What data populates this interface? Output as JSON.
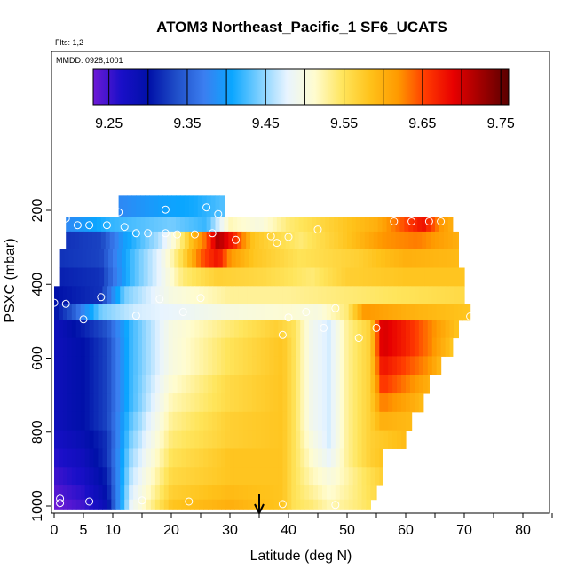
{
  "chart_data": {
    "type": "heatmap",
    "title": "ATOM3 Northeast_Pacific_1 SF6_UCATS",
    "flights_label": "Flts: 1,2",
    "dates_label": "MMDD: 0928,1001",
    "xlabel": "Latitude (deg N)",
    "ylabel": "PSXC (mbar)",
    "xlim": [
      0,
      85
    ],
    "ylim": [
      1000,
      0
    ],
    "x_ticks": [
      0,
      5,
      10,
      20,
      30,
      40,
      50,
      60,
      70,
      80
    ],
    "x_ticks_minor": [
      15,
      25,
      35,
      45,
      55,
      65,
      75,
      85
    ],
    "y_ticks": [
      200,
      400,
      600,
      800,
      1000
    ],
    "colorbar": {
      "min": 9.23,
      "max": 9.76,
      "tick_values": [
        9.25,
        9.35,
        9.45,
        9.55,
        9.65,
        9.75
      ],
      "tick_labels": [
        "9.25",
        "9.35",
        "9.45",
        "9.55",
        "9.65",
        "9.75"
      ],
      "colors": [
        "#6e1ad6",
        "#1a0fc8",
        "#0010a8",
        "#1f4ec8",
        "#3b7ef0",
        "#0aa6ff",
        "#7ccfff",
        "#e8f4ff",
        "#fffccf",
        "#ffe55c",
        "#ffc21a",
        "#ff9a00",
        "#ff3a00",
        "#e80000",
        "#a00000",
        "#5a0000"
      ]
    },
    "arrow_latitude": 35,
    "bands": [
      {
        "p": 200,
        "x0": 11,
        "x1": 29,
        "anchors": [
          [
            11,
            9.38
          ],
          [
            18,
            9.4
          ],
          [
            24,
            9.41
          ],
          [
            29,
            9.43
          ]
        ]
      },
      {
        "p": 235,
        "x0": 2,
        "x1": 68,
        "anchors": [
          [
            2,
            9.38
          ],
          [
            10,
            9.42
          ],
          [
            20,
            9.44
          ],
          [
            26,
            9.42
          ],
          [
            30,
            9.52
          ],
          [
            35,
            9.5
          ],
          [
            40,
            9.54
          ],
          [
            50,
            9.58
          ],
          [
            55,
            9.6
          ],
          [
            60,
            9.65
          ],
          [
            63,
            9.68
          ],
          [
            66,
            9.62
          ],
          [
            68,
            9.6
          ]
        ]
      },
      {
        "p": 280,
        "x0": 2,
        "x1": 69,
        "anchors": [
          [
            2,
            9.32
          ],
          [
            8,
            9.33
          ],
          [
            12,
            9.4
          ],
          [
            18,
            9.46
          ],
          [
            21,
            9.52
          ],
          [
            24,
            9.6
          ],
          [
            26,
            9.64
          ],
          [
            28,
            9.72
          ],
          [
            31,
            9.66
          ],
          [
            34,
            9.58
          ],
          [
            38,
            9.56
          ],
          [
            42,
            9.54
          ],
          [
            50,
            9.58
          ],
          [
            56,
            9.62
          ],
          [
            62,
            9.63
          ],
          [
            69,
            9.6
          ]
        ]
      },
      {
        "p": 330,
        "x0": 1,
        "x1": 69,
        "anchors": [
          [
            1,
            9.32
          ],
          [
            8,
            9.33
          ],
          [
            13,
            9.42
          ],
          [
            18,
            9.48
          ],
          [
            22,
            9.56
          ],
          [
            25,
            9.64
          ],
          [
            28,
            9.68
          ],
          [
            30,
            9.62
          ],
          [
            34,
            9.58
          ],
          [
            42,
            9.55
          ],
          [
            52,
            9.57
          ],
          [
            60,
            9.6
          ],
          [
            69,
            9.59
          ]
        ]
      },
      {
        "p": 380,
        "x0": 1,
        "x1": 70,
        "anchors": [
          [
            1,
            9.31
          ],
          [
            8,
            9.32
          ],
          [
            13,
            9.42
          ],
          [
            18,
            9.48
          ],
          [
            22,
            9.54
          ],
          [
            28,
            9.57
          ],
          [
            36,
            9.56
          ],
          [
            44,
            9.54
          ],
          [
            50,
            9.57
          ],
          [
            60,
            9.58
          ],
          [
            70,
            9.58
          ]
        ]
      },
      {
        "p": 430,
        "x0": 0,
        "x1": 70,
        "anchors": [
          [
            0,
            9.3
          ],
          [
            8,
            9.32
          ],
          [
            12,
            9.44
          ],
          [
            20,
            9.5
          ],
          [
            30,
            9.53
          ],
          [
            40,
            9.53
          ],
          [
            50,
            9.54
          ],
          [
            60,
            9.55
          ],
          [
            70,
            9.56
          ]
        ]
      },
      {
        "p": 475,
        "x0": 0,
        "x1": 71,
        "anchors": [
          [
            0,
            9.3
          ],
          [
            3,
            9.34
          ],
          [
            8,
            9.44
          ],
          [
            14,
            9.47
          ],
          [
            20,
            9.48
          ],
          [
            30,
            9.5
          ],
          [
            40,
            9.51
          ],
          [
            45,
            9.5
          ],
          [
            50,
            9.54
          ],
          [
            53,
            9.62
          ],
          [
            60,
            9.6
          ],
          [
            71,
            9.58
          ]
        ]
      },
      {
        "p": 520,
        "x0": 0,
        "x1": 69,
        "anchors": [
          [
            0,
            9.28
          ],
          [
            5,
            9.31
          ],
          [
            9,
            9.34
          ],
          [
            13,
            9.42
          ],
          [
            20,
            9.5
          ],
          [
            30,
            9.54
          ],
          [
            38,
            9.57
          ],
          [
            41,
            9.55
          ],
          [
            44,
            9.49
          ],
          [
            47,
            9.47
          ],
          [
            50,
            9.53
          ],
          [
            54,
            9.57
          ],
          [
            56,
            9.7
          ],
          [
            60,
            9.67
          ],
          [
            64,
            9.63
          ],
          [
            69,
            9.58
          ]
        ]
      },
      {
        "p": 570,
        "x0": 0,
        "x1": 68,
        "anchors": [
          [
            0,
            9.28
          ],
          [
            5,
            9.3
          ],
          [
            9,
            9.33
          ],
          [
            13,
            9.42
          ],
          [
            20,
            9.5
          ],
          [
            30,
            9.55
          ],
          [
            39,
            9.58
          ],
          [
            41,
            9.55
          ],
          [
            44,
            9.49
          ],
          [
            47,
            9.47
          ],
          [
            50,
            9.53
          ],
          [
            54,
            9.57
          ],
          [
            56,
            9.7
          ],
          [
            60,
            9.67
          ],
          [
            64,
            9.63
          ],
          [
            68,
            9.58
          ]
        ]
      },
      {
        "p": 620,
        "x0": 0,
        "x1": 66,
        "anchors": [
          [
            0,
            9.28
          ],
          [
            5,
            9.3
          ],
          [
            9,
            9.33
          ],
          [
            13,
            9.42
          ],
          [
            20,
            9.5
          ],
          [
            30,
            9.55
          ],
          [
            39,
            9.58
          ],
          [
            41,
            9.55
          ],
          [
            44,
            9.49
          ],
          [
            47,
            9.47
          ],
          [
            50,
            9.53
          ],
          [
            54,
            9.57
          ],
          [
            56,
            9.68
          ],
          [
            60,
            9.65
          ],
          [
            64,
            9.62
          ],
          [
            66,
            9.59
          ]
        ]
      },
      {
        "p": 670,
        "x0": 0,
        "x1": 64,
        "anchors": [
          [
            0,
            9.28
          ],
          [
            5,
            9.3
          ],
          [
            9,
            9.33
          ],
          [
            13,
            9.42
          ],
          [
            20,
            9.51
          ],
          [
            30,
            9.56
          ],
          [
            39,
            9.58
          ],
          [
            41,
            9.55
          ],
          [
            44,
            9.49
          ],
          [
            47,
            9.47
          ],
          [
            50,
            9.53
          ],
          [
            54,
            9.57
          ],
          [
            56,
            9.66
          ],
          [
            60,
            9.63
          ],
          [
            64,
            9.6
          ]
        ]
      },
      {
        "p": 720,
        "x0": 0,
        "x1": 63,
        "anchors": [
          [
            0,
            9.28
          ],
          [
            5,
            9.3
          ],
          [
            9,
            9.33
          ],
          [
            13,
            9.42
          ],
          [
            20,
            9.52
          ],
          [
            30,
            9.56
          ],
          [
            39,
            9.58
          ],
          [
            41,
            9.55
          ],
          [
            44,
            9.49
          ],
          [
            47,
            9.47
          ],
          [
            50,
            9.53
          ],
          [
            54,
            9.57
          ],
          [
            56,
            9.63
          ],
          [
            60,
            9.61
          ],
          [
            63,
            9.59
          ]
        ]
      },
      {
        "p": 770,
        "x0": 0,
        "x1": 61,
        "anchors": [
          [
            0,
            9.28
          ],
          [
            5,
            9.3
          ],
          [
            9,
            9.33
          ],
          [
            13,
            9.43
          ],
          [
            20,
            9.53
          ],
          [
            30,
            9.57
          ],
          [
            39,
            9.58
          ],
          [
            41,
            9.55
          ],
          [
            44,
            9.49
          ],
          [
            47,
            9.47
          ],
          [
            50,
            9.53
          ],
          [
            54,
            9.57
          ],
          [
            56,
            9.6
          ],
          [
            61,
            9.59
          ]
        ]
      },
      {
        "p": 820,
        "x0": 0,
        "x1": 60,
        "anchors": [
          [
            0,
            9.27
          ],
          [
            5,
            9.29
          ],
          [
            9,
            9.32
          ],
          [
            13,
            9.44
          ],
          [
            20,
            9.54
          ],
          [
            30,
            9.57
          ],
          [
            39,
            9.58
          ],
          [
            41,
            9.55
          ],
          [
            44,
            9.5
          ],
          [
            47,
            9.47
          ],
          [
            50,
            9.53
          ],
          [
            54,
            9.57
          ],
          [
            60,
            9.59
          ]
        ]
      },
      {
        "p": 870,
        "x0": 0,
        "x1": 56,
        "anchors": [
          [
            0,
            9.26
          ],
          [
            5,
            9.28
          ],
          [
            9,
            9.32
          ],
          [
            13,
            9.45
          ],
          [
            20,
            9.55
          ],
          [
            30,
            9.58
          ],
          [
            39,
            9.58
          ],
          [
            41,
            9.55
          ],
          [
            44,
            9.51
          ],
          [
            47,
            9.48
          ],
          [
            50,
            9.53
          ],
          [
            54,
            9.57
          ],
          [
            56,
            9.58
          ]
        ]
      },
      {
        "p": 920,
        "x0": 0,
        "x1": 56,
        "anchors": [
          [
            0,
            9.25
          ],
          [
            5,
            9.27
          ],
          [
            9,
            9.31
          ],
          [
            13,
            9.46
          ],
          [
            20,
            9.56
          ],
          [
            30,
            9.58
          ],
          [
            39,
            9.58
          ],
          [
            41,
            9.55
          ],
          [
            44,
            9.52
          ],
          [
            47,
            9.5
          ],
          [
            52,
            9.54
          ],
          [
            56,
            9.57
          ]
        ]
      },
      {
        "p": 965,
        "x0": 0,
        "x1": 55,
        "anchors": [
          [
            0,
            9.24
          ],
          [
            5,
            9.26
          ],
          [
            9,
            9.3
          ],
          [
            13,
            9.47
          ],
          [
            20,
            9.57
          ],
          [
            30,
            9.59
          ],
          [
            39,
            9.58
          ],
          [
            41,
            9.55
          ],
          [
            44,
            9.53
          ],
          [
            47,
            9.51
          ],
          [
            52,
            9.54
          ],
          [
            55,
            9.56
          ]
        ]
      },
      {
        "p": 1000,
        "x0": 0,
        "x1": 54,
        "anchors": [
          [
            0,
            9.23
          ],
          [
            5,
            9.25
          ],
          [
            9,
            9.29
          ],
          [
            13,
            9.48
          ],
          [
            20,
            9.58
          ],
          [
            30,
            9.6
          ],
          [
            39,
            9.58
          ],
          [
            41,
            9.55
          ],
          [
            44,
            9.54
          ],
          [
            47,
            9.52
          ],
          [
            52,
            9.54
          ],
          [
            54,
            9.55
          ]
        ]
      }
    ],
    "points": [
      {
        "lat": 11,
        "p": 205
      },
      {
        "lat": 19,
        "p": 198
      },
      {
        "lat": 26,
        "p": 192
      },
      {
        "lat": 28,
        "p": 210
      },
      {
        "lat": 2,
        "p": 222
      },
      {
        "lat": 4,
        "p": 240
      },
      {
        "lat": 6,
        "p": 240
      },
      {
        "lat": 9,
        "p": 240
      },
      {
        "lat": 12,
        "p": 245
      },
      {
        "lat": 14,
        "p": 262
      },
      {
        "lat": 16,
        "p": 262
      },
      {
        "lat": 19,
        "p": 262
      },
      {
        "lat": 21,
        "p": 265
      },
      {
        "lat": 24,
        "p": 265
      },
      {
        "lat": 27,
        "p": 262
      },
      {
        "lat": 31,
        "p": 280
      },
      {
        "lat": 37,
        "p": 270
      },
      {
        "lat": 38,
        "p": 288
      },
      {
        "lat": 40,
        "p": 272
      },
      {
        "lat": 45,
        "p": 252
      },
      {
        "lat": 58,
        "p": 230
      },
      {
        "lat": 61,
        "p": 230
      },
      {
        "lat": 64,
        "p": 230
      },
      {
        "lat": 66,
        "p": 230
      },
      {
        "lat": 8,
        "p": 435
      },
      {
        "lat": 0,
        "p": 450
      },
      {
        "lat": 2,
        "p": 453
      },
      {
        "lat": 5,
        "p": 495
      },
      {
        "lat": 14,
        "p": 485
      },
      {
        "lat": 18,
        "p": 440
      },
      {
        "lat": 22,
        "p": 475
      },
      {
        "lat": 25,
        "p": 437
      },
      {
        "lat": 40,
        "p": 490
      },
      {
        "lat": 43,
        "p": 475
      },
      {
        "lat": 48,
        "p": 465
      },
      {
        "lat": 39,
        "p": 537
      },
      {
        "lat": 46,
        "p": 518
      },
      {
        "lat": 52,
        "p": 545
      },
      {
        "lat": 55,
        "p": 518
      },
      {
        "lat": 71,
        "p": 487
      },
      {
        "lat": 1,
        "p": 980
      },
      {
        "lat": 1,
        "p": 992
      },
      {
        "lat": 6,
        "p": 988
      },
      {
        "lat": 15,
        "p": 985
      },
      {
        "lat": 23,
        "p": 988
      },
      {
        "lat": 39,
        "p": 995
      },
      {
        "lat": 48,
        "p": 997
      }
    ]
  }
}
